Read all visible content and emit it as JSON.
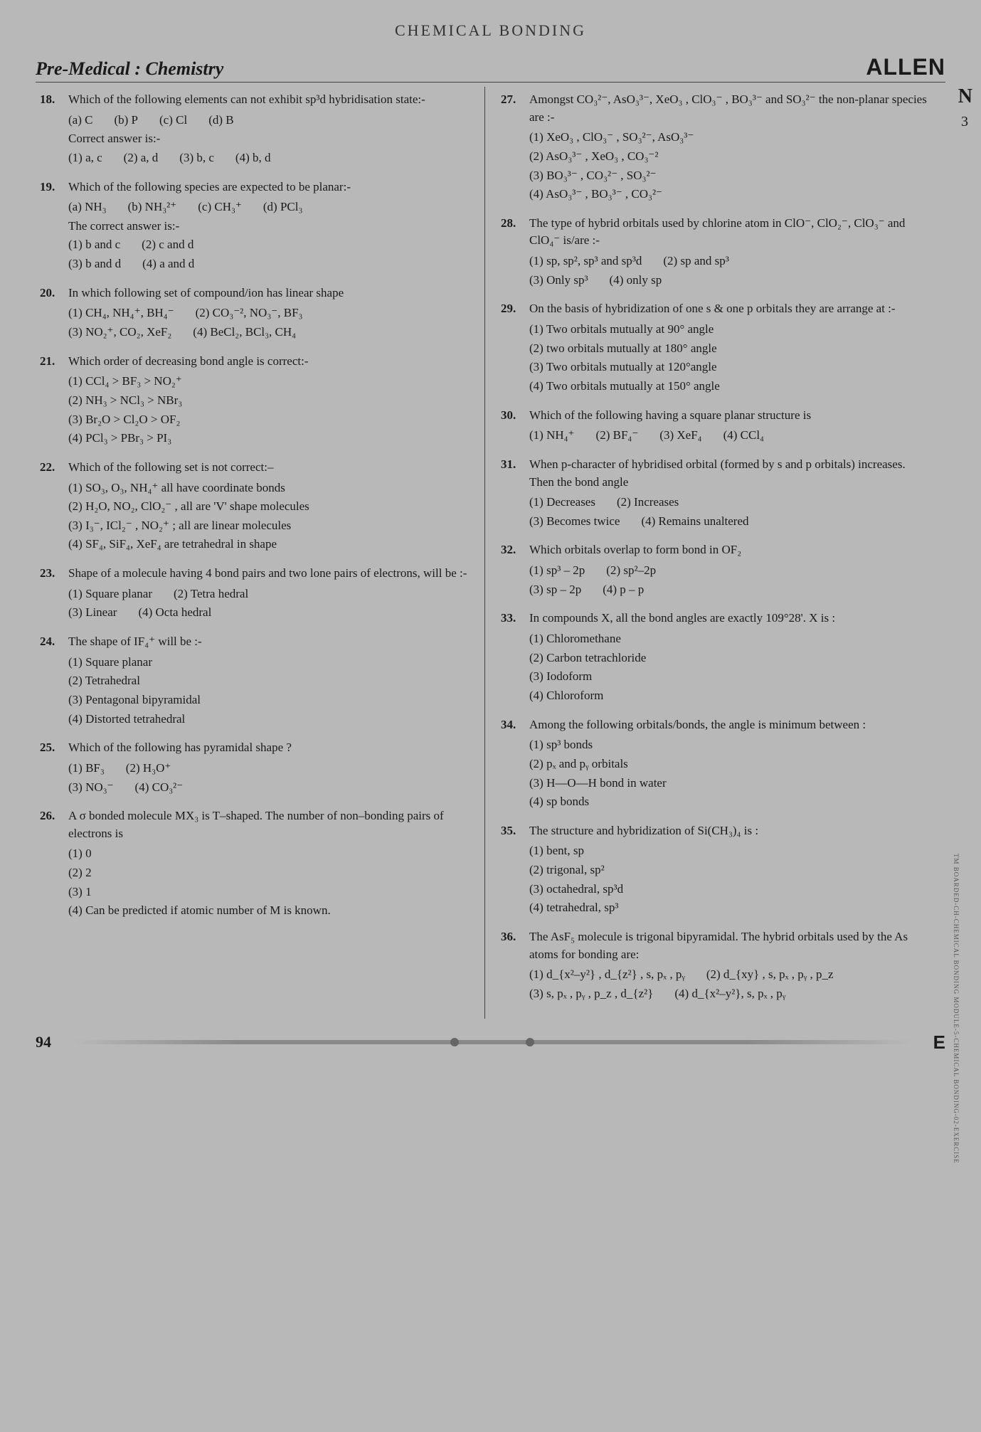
{
  "top_header": "CHEMICAL  BONDING",
  "subject": "Pre-Medical : Chemistry",
  "brand": "ALLEN",
  "side_letter": "N",
  "side_num": "3",
  "page_num": "94",
  "footer_E": "E",
  "vtext": "TM BOARDED-CH-CHEMICAL BONDING MODULE-5-CHEMICAL BONDING-02-EXERCISE",
  "left": [
    {
      "n": "18.",
      "stem": "Which of the following elements can not exhibit sp³d hybridisation state:-",
      "rows": [
        [
          "(a) C",
          "(b) P",
          "(c) Cl",
          "(d) B"
        ]
      ],
      "sub": "Correct answer is:-",
      "rows2": [
        [
          "(1) a, c",
          "(2) a, d",
          "(3) b, c",
          "(4) b, d"
        ]
      ]
    },
    {
      "n": "19.",
      "stem": "Which of the following species are expected to be planar:-",
      "rows": [
        [
          "(a) NH₃",
          "(b) NH₃²⁺",
          "(c) CH₃⁺",
          "(d) PCl₃"
        ]
      ],
      "sub": "The correct answer is:-",
      "rows2": [
        [
          "(1) b and c",
          "(2) c and d"
        ],
        [
          "(3) b and d",
          "(4) a and d"
        ]
      ]
    },
    {
      "n": "20.",
      "stem": "In which following set of compound/ion has linear shape",
      "rows": [
        [
          "(1) CH₄, NH₄⁺, BH₄⁻",
          "(2) CO₃⁻², NO₃⁻, BF₃"
        ],
        [
          "(3) NO₂⁺, CO₂, XeF₂",
          "(4) BeCl₂, BCl₃, CH₄"
        ]
      ]
    },
    {
      "n": "21.",
      "stem": "Which order of decreasing bond angle is correct:-",
      "rows": [
        [
          "(1) CCl₄ > BF₃ > NO₂⁺"
        ],
        [
          "(2) NH₃ > NCl₃ > NBr₃"
        ],
        [
          "(3) Br₂O > Cl₂O > OF₂"
        ],
        [
          "(4) PCl₃ > PBr₃ > PI₃"
        ]
      ]
    },
    {
      "n": "22.",
      "stem": "Which of the following set is not correct:–",
      "rows": [
        [
          "(1) SO₃, O₃, NH₄⁺ all have coordinate bonds"
        ],
        [
          "(2) H₂O, NO₂, ClO₂⁻ , all are 'V' shape molecules"
        ],
        [
          "(3) I₃⁻, ICl₂⁻ , NO₂⁺ ; all are linear molecules"
        ],
        [
          "(4) SF₄, SiF₄, XeF₄ are tetrahedral in shape"
        ]
      ]
    },
    {
      "n": "23.",
      "stem": "Shape of a molecule having 4 bond pairs and two lone pairs of electrons, will be :-",
      "rows": [
        [
          "(1) Square planar",
          "(2) Tetra hedral"
        ],
        [
          "(3) Linear",
          "(4) Octa hedral"
        ]
      ]
    },
    {
      "n": "24.",
      "stem": "The shape of  IF₄⁺  will be :-",
      "rows": [
        [
          "(1) Square planar"
        ],
        [
          "(2) Tetrahedral"
        ],
        [
          "(3) Pentagonal bipyramidal"
        ],
        [
          "(4) Distorted tetrahedral"
        ]
      ]
    },
    {
      "n": "25.",
      "stem": "Which of the following has pyramidal shape ?",
      "rows": [
        [
          "(1) BF₃",
          "(2) H₃O⁺"
        ],
        [
          "(3) NO₃⁻",
          "(4) CO₃²⁻"
        ]
      ]
    },
    {
      "n": "26.",
      "stem": "A σ bonded molecule MX₃ is T–shaped. The number of non–bonding pairs of electrons is",
      "rows": [
        [
          "(1) 0"
        ],
        [
          "(2) 2"
        ],
        [
          "(3) 1"
        ],
        [
          "(4) Can be predicted if atomic number of  M is known."
        ]
      ]
    }
  ],
  "right": [
    {
      "n": "27.",
      "stem": "Amongst CO₃²⁻, AsO₃³⁻, XeO₃ , ClO₃⁻ , BO₃³⁻ and SO₃²⁻ the non-planar species are :-",
      "rows": [
        [
          "(1) XeO₃ , ClO₃⁻ , SO₃²⁻, AsO₃³⁻"
        ],
        [
          "(2) AsO₃³⁻ , XeO₃ , CO₃⁻²"
        ],
        [
          "(3) BO₃³⁻ , CO₃²⁻ , SO₃²⁻"
        ],
        [
          "(4) AsO₃³⁻ , BO₃³⁻ , CO₃²⁻"
        ]
      ]
    },
    {
      "n": "28.",
      "stem": "The type of hybrid orbitals used by chlorine atom in ClO⁻, ClO₂⁻, ClO₃⁻ and ClO₄⁻ is/are :-",
      "rows": [
        [
          "(1) sp, sp², sp³ and sp³d",
          "(2) sp and sp³"
        ],
        [
          "(3) Only sp³",
          "(4) only sp"
        ]
      ]
    },
    {
      "n": "29.",
      "stem": "On the basis of hybridization of one s & one p orbitals they are arrange at :-",
      "rows": [
        [
          "(1) Two orbitals mutually at 90° angle"
        ],
        [
          "(2) two orbitals mutually at 180° angle"
        ],
        [
          "(3) Two orbitals mutually at 120°angle"
        ],
        [
          "(4) Two orbitals mutually at 150° angle"
        ]
      ]
    },
    {
      "n": "30.",
      "stem": "Which of the following having a square planar structure is",
      "rows": [
        [
          "(1) NH₄⁺",
          "(2) BF₄⁻",
          "(3) XeF₄",
          "(4) CCl₄"
        ]
      ]
    },
    {
      "n": "31.",
      "stem": "When p-character of hybridised orbital (formed by s and p orbitals) increases. Then the bond angle",
      "rows": [
        [
          "(1) Decreases",
          "(2) Increases"
        ],
        [
          "(3) Becomes twice",
          "(4) Remains unaltered"
        ]
      ]
    },
    {
      "n": "32.",
      "stem": "Which orbitals overlap to form bond in OF₂",
      "rows": [
        [
          "(1) sp³ – 2p",
          "(2) sp²–2p"
        ],
        [
          "(3) sp – 2p",
          "(4) p – p"
        ]
      ]
    },
    {
      "n": "33.",
      "stem": "In compounds X, all the bond angles are exactly 109°28'. X is :",
      "rows": [
        [
          "(1) Chloromethane"
        ],
        [
          "(2) Carbon tetrachloride"
        ],
        [
          "(3) Iodoform"
        ],
        [
          "(4) Chloroform"
        ]
      ]
    },
    {
      "n": "34.",
      "stem": "Among the following orbitals/bonds, the angle is minimum between :",
      "rows": [
        [
          "(1) sp³ bonds"
        ],
        [
          "(2) pₓ and pᵧ orbitals"
        ],
        [
          "(3) H—O—H bond in water"
        ],
        [
          "(4) sp bonds"
        ]
      ]
    },
    {
      "n": "35.",
      "stem": "The structure and hybridization of Si(CH₃)₄ is :",
      "rows": [
        [
          "(1) bent, sp"
        ],
        [
          "(2) trigonal, sp²"
        ],
        [
          "(3) octahedral, sp³d"
        ],
        [
          "(4) tetrahedral, sp³"
        ]
      ]
    },
    {
      "n": "36.",
      "stem": "The AsF₅ molecule is trigonal bipyramidal. The hybrid orbitals used by the As atoms for bonding are:",
      "rows": [
        [
          "(1) d_{x²–y²} , d_{z²} , s, pₓ , pᵧ",
          "(2) d_{xy} , s, pₓ , pᵧ , p_z"
        ],
        [
          "(3) s, pₓ , pᵧ , p_z , d_{z²}",
          "(4) d_{x²–y²}, s, pₓ , pᵧ"
        ]
      ]
    }
  ]
}
